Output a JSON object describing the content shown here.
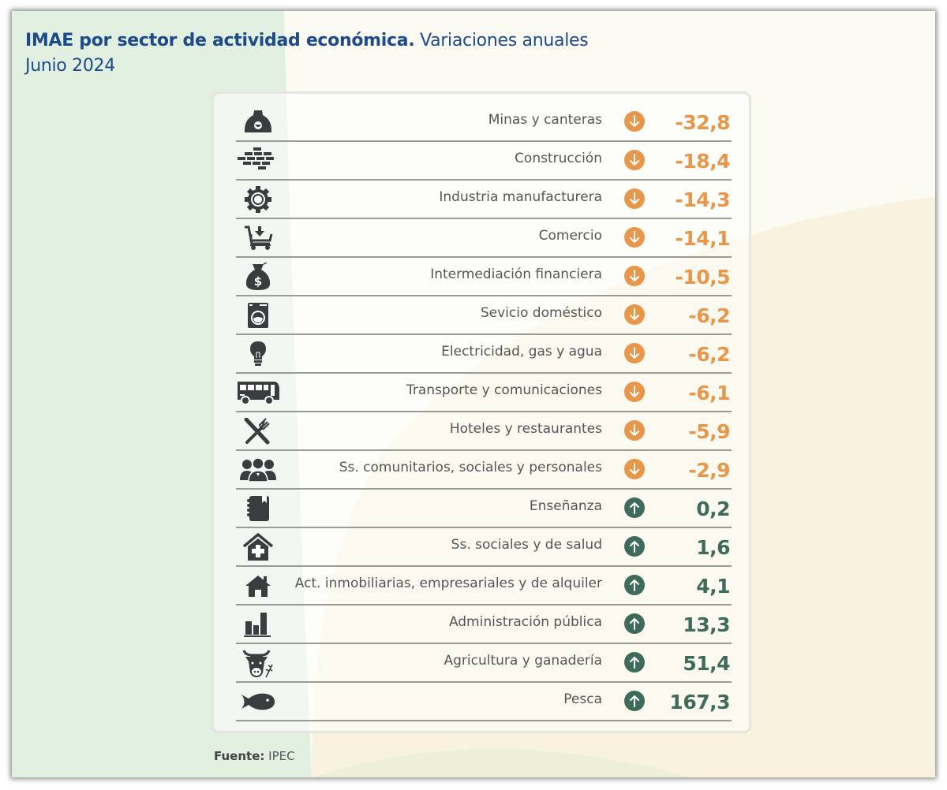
{
  "header": {
    "title_bold": "IMAE por sector de actividad económica.",
    "title_regular": " Variaciones anuales",
    "subtitle": "Junio 2024"
  },
  "colors": {
    "negative": "#e8964a",
    "positive": "#3f6b5c",
    "title": "#1d4a8c",
    "icon": "#3a3d40"
  },
  "chart_data": {
    "type": "table",
    "title": "IMAE por sector de actividad económica. Variaciones anuales",
    "subtitle": "Junio 2024",
    "columns": [
      "icon",
      "sector",
      "direction",
      "variacion_anual"
    ],
    "rows": [
      {
        "icon": "miner-helmet-icon",
        "sector": "Minas y canteras",
        "direction": "down",
        "value": -32.8,
        "display": "-32,8"
      },
      {
        "icon": "bricks-icon",
        "sector": "Construcción",
        "direction": "down",
        "value": -18.4,
        "display": "-18,4"
      },
      {
        "icon": "gear-icon",
        "sector": "Industria manufacturera",
        "direction": "down",
        "value": -14.3,
        "display": "-14,3"
      },
      {
        "icon": "shopping-cart-icon",
        "sector": "Comercio",
        "direction": "down",
        "value": -14.1,
        "display": "-14,1"
      },
      {
        "icon": "money-bag-icon",
        "sector": "Intermediación financiera",
        "direction": "down",
        "value": -10.5,
        "display": "-10,5"
      },
      {
        "icon": "washing-machine-icon",
        "sector": "Sevicio doméstico",
        "direction": "down",
        "value": -6.2,
        "display": "-6,2"
      },
      {
        "icon": "light-bulb-icon",
        "sector": "Electricidad, gas y agua",
        "direction": "down",
        "value": -6.2,
        "display": "-6,2"
      },
      {
        "icon": "bus-icon",
        "sector": "Transporte y comunicaciones",
        "direction": "down",
        "value": -6.1,
        "display": "-6,1"
      },
      {
        "icon": "knife-fork-icon",
        "sector": "Hoteles y restaurantes",
        "direction": "down",
        "value": -5.9,
        "display": "-5,9"
      },
      {
        "icon": "people-group-icon",
        "sector": "Ss. comunitarios, sociales y personales",
        "direction": "down",
        "value": -2.9,
        "display": "-2,9"
      },
      {
        "icon": "notebook-icon",
        "sector": "Enseñanza",
        "direction": "up",
        "value": 0.2,
        "display": "0,2"
      },
      {
        "icon": "health-house-icon",
        "sector": "Ss. sociales y de salud",
        "direction": "up",
        "value": 1.6,
        "display": "1,6"
      },
      {
        "icon": "house-icon",
        "sector": "Act. inmobiliarias, empresariales y de alquiler",
        "direction": "up",
        "value": 4.1,
        "display": "4,1"
      },
      {
        "icon": "bar-chart-icon",
        "sector": "Administración pública",
        "direction": "up",
        "value": 13.3,
        "display": "13,3"
      },
      {
        "icon": "cow-wheat-icon",
        "sector": "Agricultura y ganadería",
        "direction": "up",
        "value": 51.4,
        "display": "51,4"
      },
      {
        "icon": "fish-icon",
        "sector": "Pesca",
        "direction": "up",
        "value": 167.3,
        "display": "167,3"
      }
    ]
  },
  "footer": {
    "source_label": "Fuente:",
    "source_value": " IPEC"
  }
}
